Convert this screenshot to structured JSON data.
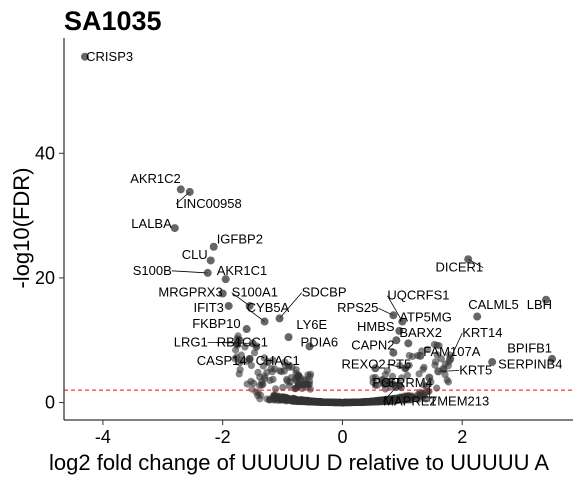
{
  "chart_data": {
    "type": "scatter",
    "title": "SA1035",
    "xlabel": "log2 fold change of UUUUU D relative to UUUUU A",
    "ylabel": "-log10(FDR)",
    "xlim": [
      -4.65,
      3.85
    ],
    "ylim": [
      -2.8,
      58.5
    ],
    "x_ticks": [
      -4,
      -2,
      0,
      2
    ],
    "y_ticks": [
      0,
      20,
      40
    ],
    "threshold_y": 2,
    "threshold_color": "#ff0000",
    "point_color": "#333333",
    "grid": false,
    "labeled_points": [
      {
        "name": "CRISP3",
        "x": -4.3,
        "y": 55.5,
        "lx": -4.28,
        "ly": 54.8,
        "anchor": "start"
      },
      {
        "name": "AKR1C2",
        "x": -2.7,
        "y": 34.2,
        "lx": -2.7,
        "ly": 35.2,
        "anchor": "end"
      },
      {
        "name": "LINC00958",
        "x": -2.55,
        "y": 33.8,
        "lx": -2.78,
        "ly": 31.2,
        "anchor": "start"
      },
      {
        "name": "LALBA",
        "x": -2.8,
        "y": 28.0,
        "lx": -2.85,
        "ly": 28.0,
        "anchor": "end"
      },
      {
        "name": "IGFBP2",
        "x": -2.15,
        "y": 25.0,
        "lx": -2.1,
        "ly": 25.5,
        "anchor": "start"
      },
      {
        "name": "CLU",
        "x": -2.2,
        "y": 22.8,
        "lx": -2.25,
        "ly": 23.0,
        "anchor": "end"
      },
      {
        "name": "S100B",
        "x": -2.25,
        "y": 20.8,
        "lx": -2.85,
        "ly": 20.5,
        "anchor": "end"
      },
      {
        "name": "AKR1C1",
        "x": -1.95,
        "y": 19.8,
        "lx": -2.1,
        "ly": 20.5,
        "anchor": "start"
      },
      {
        "name": "MRGPRX3",
        "x": -2.0,
        "y": 17.5,
        "lx": -2.0,
        "ly": 17.0,
        "anchor": "end"
      },
      {
        "name": "S100A1",
        "x": -1.55,
        "y": 15.5,
        "lx": -1.85,
        "ly": 17.0,
        "anchor": "start"
      },
      {
        "name": "SDCBP",
        "x": -1.05,
        "y": 13.5,
        "lx": -0.68,
        "ly": 17.0,
        "anchor": "start"
      },
      {
        "name": "IFIT3",
        "x": -1.9,
        "y": 15.5,
        "lx": -1.98,
        "ly": 14.5,
        "anchor": "end"
      },
      {
        "name": "CYB5A",
        "x": -1.3,
        "y": 13.0,
        "lx": -1.6,
        "ly": 14.5,
        "anchor": "start"
      },
      {
        "name": "FKBP10",
        "x": -1.6,
        "y": 11.8,
        "lx": -1.7,
        "ly": 12.0,
        "anchor": "end"
      },
      {
        "name": "LY6E",
        "x": -0.9,
        "y": 10.5,
        "lx": -0.77,
        "ly": 11.8,
        "anchor": "start"
      },
      {
        "name": "LRG1",
        "x": -1.75,
        "y": 9.6,
        "lx": -2.25,
        "ly": 9.0,
        "anchor": "end"
      },
      {
        "name": "RB1CC1",
        "x": -1.5,
        "y": 9.5,
        "lx": -2.1,
        "ly": 9.0,
        "anchor": "start"
      },
      {
        "name": "PDIA6",
        "x": -0.55,
        "y": 9.0,
        "lx": -0.7,
        "ly": 9.0,
        "anchor": "start"
      },
      {
        "name": "CASP14",
        "x": -1.55,
        "y": 7.0,
        "lx": -1.6,
        "ly": 6.0,
        "anchor": "end"
      },
      {
        "name": "CHAC1",
        "x": -1.25,
        "y": 6.5,
        "lx": -1.45,
        "ly": 6.0,
        "anchor": "start"
      },
      {
        "name": "RPS25",
        "x": 0.85,
        "y": 14.0,
        "lx": 0.6,
        "ly": 14.5,
        "anchor": "end"
      },
      {
        "name": "UQCRFS1",
        "x": 1.0,
        "y": 13.0,
        "lx": 0.75,
        "ly": 16.5,
        "anchor": "start"
      },
      {
        "name": "ATP5MG",
        "x": 0.95,
        "y": 11.5,
        "lx": 0.95,
        "ly": 13.0,
        "anchor": "start"
      },
      {
        "name": "HMBS",
        "x": 0.9,
        "y": 10.0,
        "lx": 0.87,
        "ly": 11.5,
        "anchor": "end"
      },
      {
        "name": "BARX2",
        "x": 1.1,
        "y": 9.5,
        "lx": 0.95,
        "ly": 10.5,
        "anchor": "start"
      },
      {
        "name": "CAPN2",
        "x": 0.85,
        "y": 8.0,
        "lx": 0.87,
        "ly": 8.5,
        "anchor": "end"
      },
      {
        "name": "FAM107A",
        "x": 1.3,
        "y": 7.5,
        "lx": 1.35,
        "ly": 7.5,
        "anchor": "start"
      },
      {
        "name": "KRT14",
        "x": 1.8,
        "y": 7.0,
        "lx": 2.0,
        "ly": 10.5,
        "anchor": "start"
      },
      {
        "name": "PT5",
        "x": 1.05,
        "y": 5.5,
        "lx": 0.75,
        "ly": 5.5,
        "anchor": "start"
      },
      {
        "name": "REXO2",
        "x": 0.55,
        "y": 5.5,
        "lx": 0.72,
        "ly": 5.5,
        "anchor": "end"
      },
      {
        "name": "KRT5",
        "x": 1.6,
        "y": 5.0,
        "lx": 1.95,
        "ly": 4.5,
        "anchor": "start"
      },
      {
        "name": "PGR",
        "x": 0.7,
        "y": 3.0,
        "lx": 0.5,
        "ly": 2.5,
        "anchor": "start"
      },
      {
        "name": "SRRM4",
        "x": 0.95,
        "y": 2.8,
        "lx": 0.75,
        "ly": 2.5,
        "anchor": "start"
      },
      {
        "name": "MAPRE2",
        "x": 0.9,
        "y": 2.5,
        "lx": 0.68,
        "ly": -0.5,
        "anchor": "start"
      },
      {
        "name": "TMEM213",
        "x": 1.45,
        "y": 4.0,
        "lx": 1.45,
        "ly": -0.5,
        "anchor": "start"
      },
      {
        "name": "DICER1",
        "x": 2.1,
        "y": 23.0,
        "lx": 2.35,
        "ly": 21.0,
        "anchor": "end"
      },
      {
        "name": "CALML5",
        "x": 2.25,
        "y": 13.8,
        "lx": 2.1,
        "ly": 15.0,
        "anchor": "start"
      },
      {
        "name": "LBH",
        "x": 3.4,
        "y": 16.5,
        "lx": 3.5,
        "ly": 15.0,
        "anchor": "end"
      },
      {
        "name": "BPIFB1",
        "x": 3.5,
        "y": 7.0,
        "lx": 3.5,
        "ly": 8.0,
        "anchor": "end"
      },
      {
        "name": "SERPINB4",
        "x": 2.5,
        "y": 6.5,
        "lx": 2.6,
        "ly": 5.5,
        "anchor": "start"
      }
    ]
  }
}
